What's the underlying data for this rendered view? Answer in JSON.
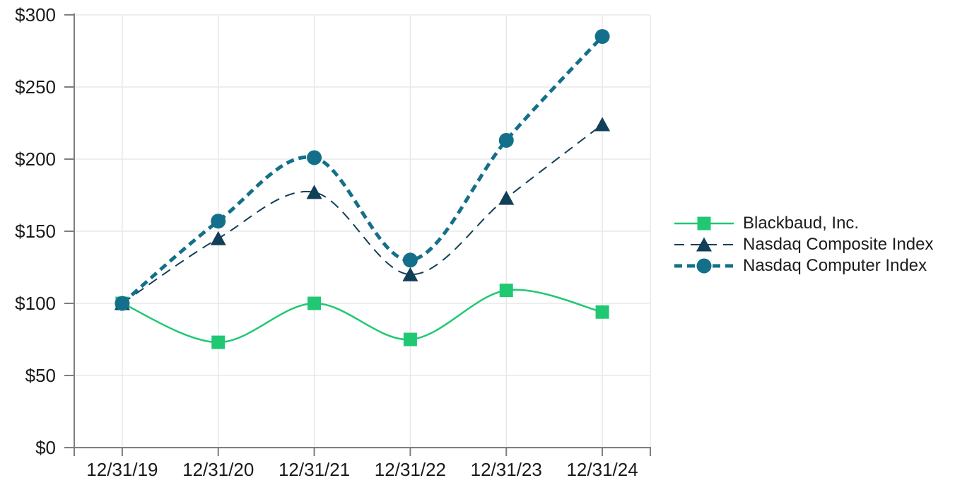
{
  "chart_data": {
    "type": "line",
    "title": "",
    "xlabel": "",
    "ylabel": "",
    "categories": [
      "12/31/19",
      "12/31/20",
      "12/31/21",
      "12/31/22",
      "12/31/23",
      "12/31/24"
    ],
    "series": [
      {
        "name": "Blackbaud, Inc.",
        "values": [
          100,
          73,
          100,
          75,
          109,
          94
        ],
        "color": "#21C873",
        "marker": "square",
        "line_style": "solid",
        "line_width": 2.5
      },
      {
        "name": "Nasdaq Composite Index",
        "values": [
          100,
          145,
          177,
          120,
          173,
          224
        ],
        "color": "#123F58",
        "marker": "triangle",
        "line_style": "dashed",
        "dash": "14 9",
        "line_width": 2
      },
      {
        "name": "Nasdaq Computer Index",
        "values": [
          100,
          157,
          201,
          130,
          213,
          285
        ],
        "color": "#14708A",
        "marker": "circle",
        "line_style": "dashed",
        "dash": "11 7",
        "line_width": 5
      }
    ],
    "y_axis": {
      "min": 0,
      "max": 300,
      "tick_interval": 50,
      "tick_values": [
        0,
        50,
        100,
        150,
        200,
        250,
        300
      ],
      "tick_labels": [
        "$0",
        "$50",
        "$100",
        "$150",
        "$200",
        "$250",
        "$300"
      ]
    },
    "ylim": [
      0,
      300
    ],
    "grid": true,
    "smoothed_lines": true,
    "legend_position": "right",
    "style": {
      "axis_color": "#7E7E7E",
      "grid_color": "#E8E8E8",
      "text_color": "#1a1a1a",
      "background": "#ffffff"
    }
  }
}
